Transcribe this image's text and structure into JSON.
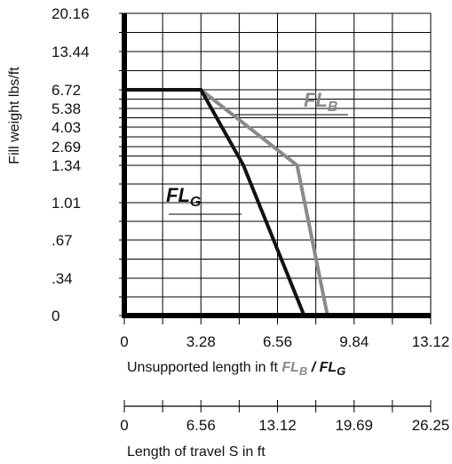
{
  "chart_data": {
    "type": "line",
    "ylabel": "Fill weight lbs/ft",
    "xlabel": {
      "prefix": "Unsupported length in ft ",
      "series_b_main": "FL",
      "series_b_sub": "B",
      "separator": " / ",
      "series_g_main": "FL",
      "series_g_sub": "G"
    },
    "x2label": "Length of travel S in ft",
    "y_ticks": [
      "0",
      ".34",
      ".67",
      "1.01",
      "1.34",
      "2.69",
      "4.03",
      "5.38",
      "6.72",
      "13.44",
      "20.16"
    ],
    "x_ticks": [
      "0",
      "3.28",
      "6.56",
      "9.84",
      "13.12"
    ],
    "x_tick_values": [
      0,
      3.28,
      6.56,
      9.84,
      13.12
    ],
    "x2_ticks": [
      "0",
      "6.56",
      "13.12",
      "19.69",
      "26.25"
    ],
    "xlim": [
      0,
      13.12
    ],
    "grid": true,
    "series": [
      {
        "name_main": "FL",
        "name_sub": "B",
        "color": "#8a8a8a",
        "points": [
          [
            0,
            "6.72"
          ],
          [
            3.28,
            "6.72"
          ],
          [
            7.4,
            "1.34"
          ],
          [
            8.7,
            "0"
          ]
        ]
      },
      {
        "name_main": "FL",
        "name_sub": "G",
        "color": "#111111",
        "points": [
          [
            0,
            "6.72"
          ],
          [
            3.28,
            "6.72"
          ],
          [
            5.1,
            "1.34"
          ],
          [
            7.7,
            "0"
          ]
        ]
      }
    ],
    "colors": {
      "axis": "#000000",
      "grid": "#000000",
      "series_b": "#8a8a8a",
      "series_g": "#111111"
    }
  }
}
